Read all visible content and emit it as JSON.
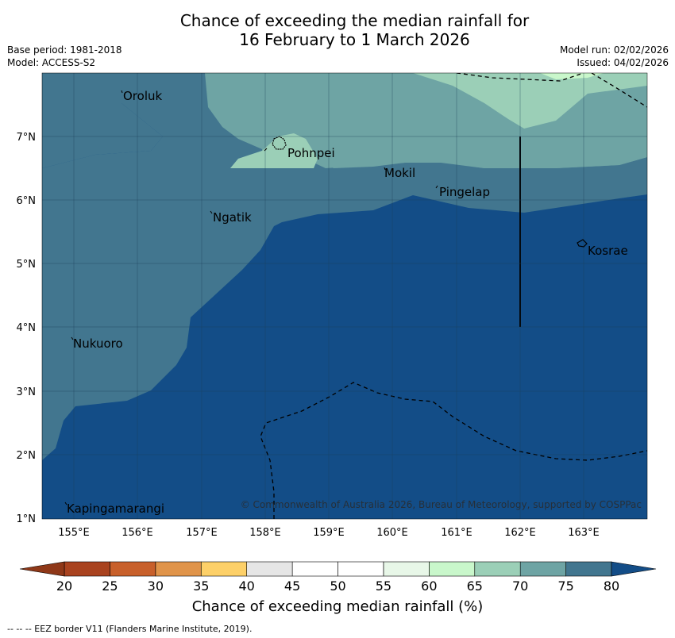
{
  "title": {
    "line1": "Chance of exceeding the median rainfall for",
    "line2": "16 February to 1 March 2026"
  },
  "meta": {
    "base_period": "Base period: 1981-2018",
    "model": "Model: ACCESS-S2",
    "model_run": "Model run: 02/02/2026",
    "issued": "Issued: 04/02/2026"
  },
  "axes": {
    "lon_ticks": [
      "155°E",
      "156°E",
      "157°E",
      "158°E",
      "159°E",
      "160°E",
      "161°E",
      "162°E",
      "163°E"
    ],
    "lat_ticks": [
      "7°N",
      "6°N",
      "5°N",
      "4°N",
      "3°N",
      "2°N",
      "1°N"
    ]
  },
  "places": [
    "Oroluk",
    "Pohnpei",
    "Mokil",
    "Pingelap",
    "Ngatik",
    "Kosrae",
    "Nukuoro",
    "Kapingamarangi"
  ],
  "copyright": "© Commonwealth of Australia 2026, Bureau of Meteorology, supported by COSPPac",
  "colorbar": {
    "ticks": [
      "20",
      "25",
      "30",
      "35",
      "40",
      "45",
      "50",
      "55",
      "60",
      "65",
      "70",
      "75",
      "80"
    ],
    "colors": [
      "#a9431f",
      "#c8602b",
      "#e0944a",
      "#fdd068",
      "#e6e6e6",
      "#ffffff",
      "#ffffff",
      "#e8f7e8",
      "#c9f7cb",
      "#9bcfb7",
      "#6ea4a4",
      "#42768f",
      "#134d87"
    ],
    "label": "Chance of exceeding median rainfall (%)"
  },
  "footnote": "--  --  -- EEZ border V11 (Flanders Marine Institute, 2019).",
  "colors": {
    "p80": "#134d87",
    "p75": "#42768f",
    "p70": "#6ea4a4",
    "p65": "#9bcfb7",
    "p60": "#c9f7cb"
  }
}
